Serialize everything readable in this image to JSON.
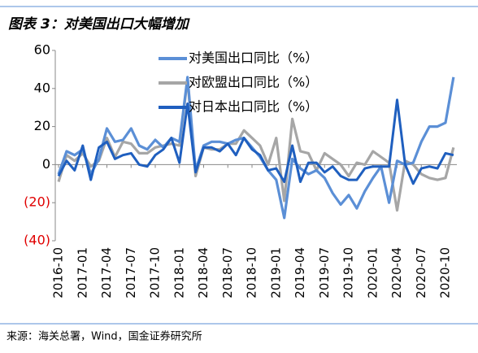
{
  "chart_data": {
    "type": "line",
    "title": "图表 3：对美国出口大幅增加",
    "source": "来源：海关总署，Wind，国金证券研究所",
    "categories": [
      "2016-10",
      null,
      null,
      "2017-01",
      null,
      null,
      "2017-04",
      null,
      null,
      "2017-07",
      null,
      null,
      "2017-10",
      null,
      null,
      "2018-01",
      null,
      null,
      "2018-04",
      null,
      null,
      "2018-07",
      null,
      null,
      "2018-10",
      null,
      null,
      "2019-01",
      null,
      null,
      "2019-04",
      null,
      null,
      "2019-07",
      null,
      null,
      "2019-10",
      null,
      null,
      "2020-01",
      null,
      null,
      "2020-04",
      null,
      null,
      "2020-07",
      null,
      null,
      "2020-10",
      null
    ],
    "series": [
      {
        "name": "对美国出口同比（%）",
        "color": "#5b8fd6",
        "values": [
          -5,
          7,
          5,
          8,
          -5,
          3,
          19,
          12,
          13,
          19,
          10,
          8,
          13,
          9,
          14,
          12,
          46,
          -3,
          10,
          12,
          12,
          11,
          13,
          14,
          9,
          4,
          -3,
          -8,
          -28,
          3,
          -2,
          -5,
          -3,
          -7,
          -15,
          -21,
          -16,
          -23,
          -14,
          -7,
          -1,
          -20,
          2,
          0,
          1,
          12,
          20,
          20,
          22,
          46
        ]
      },
      {
        "name": "对欧盟出口同比（%）",
        "color": "#a6a6a6",
        "values": [
          -9,
          5,
          2,
          6,
          -1,
          2,
          14,
          4,
          12,
          11,
          6,
          6,
          9,
          10,
          11,
          10,
          45,
          -6,
          9,
          8,
          8,
          11,
          11,
          18,
          14,
          10,
          0,
          14,
          -19,
          24,
          7,
          6,
          -3,
          6,
          3,
          0,
          -6,
          1,
          0,
          7,
          4,
          1,
          -24,
          2,
          0,
          -5,
          -7,
          -8,
          -7,
          9
        ]
      },
      {
        "name": "对日本出口同比（%）",
        "color": "#1f5fbf",
        "values": [
          -6,
          2,
          -3,
          10,
          -8,
          9,
          12,
          3,
          5,
          6,
          0,
          -1,
          5,
          8,
          14,
          1,
          32,
          -4,
          9,
          9,
          7,
          11,
          5,
          14,
          8,
          5,
          -3,
          -2,
          -9,
          10,
          -9,
          1,
          1,
          -4,
          -1,
          -6,
          -8,
          -8,
          -2,
          -1,
          -1,
          -1,
          34,
          0,
          -10,
          -2,
          -1,
          -2,
          6,
          5
        ]
      }
    ],
    "ylim": [
      -40,
      60
    ],
    "yticks": [
      {
        "value": -40,
        "label": "(40)"
      },
      {
        "value": -20,
        "label": "(20)"
      },
      0,
      20,
      40,
      60
    ],
    "negative_tick_color": "#e00000"
  }
}
